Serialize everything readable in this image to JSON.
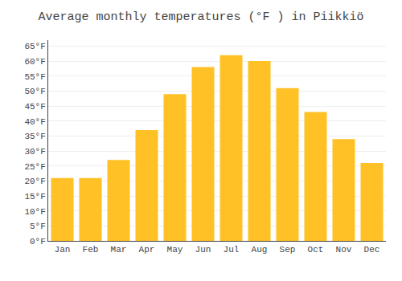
{
  "chart_data": {
    "type": "bar",
    "title": "Average monthly temperatures (°F ) in Piikkiö",
    "categories": [
      "Jan",
      "Feb",
      "Mar",
      "Apr",
      "May",
      "Jun",
      "Jul",
      "Aug",
      "Sep",
      "Oct",
      "Nov",
      "Dec"
    ],
    "values": [
      21,
      21,
      27,
      37,
      49,
      58,
      62,
      60,
      51,
      43,
      34,
      26
    ],
    "color": "#FFC125",
    "ylim": [
      0,
      67
    ],
    "yticks": [
      {
        "value": 0,
        "label": "0°F"
      },
      {
        "value": 5,
        "label": "5°F"
      },
      {
        "value": 10,
        "label": "10°F"
      },
      {
        "value": 15,
        "label": "15°F"
      },
      {
        "value": 20,
        "label": "20°F"
      },
      {
        "value": 25,
        "label": "25°F"
      },
      {
        "value": 30,
        "label": "30°F"
      },
      {
        "value": 35,
        "label": "35°F"
      },
      {
        "value": 40,
        "label": "40°F"
      },
      {
        "value": 45,
        "label": "45°F"
      },
      {
        "value": 50,
        "label": "50°F"
      },
      {
        "value": 55,
        "label": "55°F"
      },
      {
        "value": 60,
        "label": "60°F"
      },
      {
        "value": 65,
        "label": "65°F"
      }
    ],
    "grid": true
  }
}
